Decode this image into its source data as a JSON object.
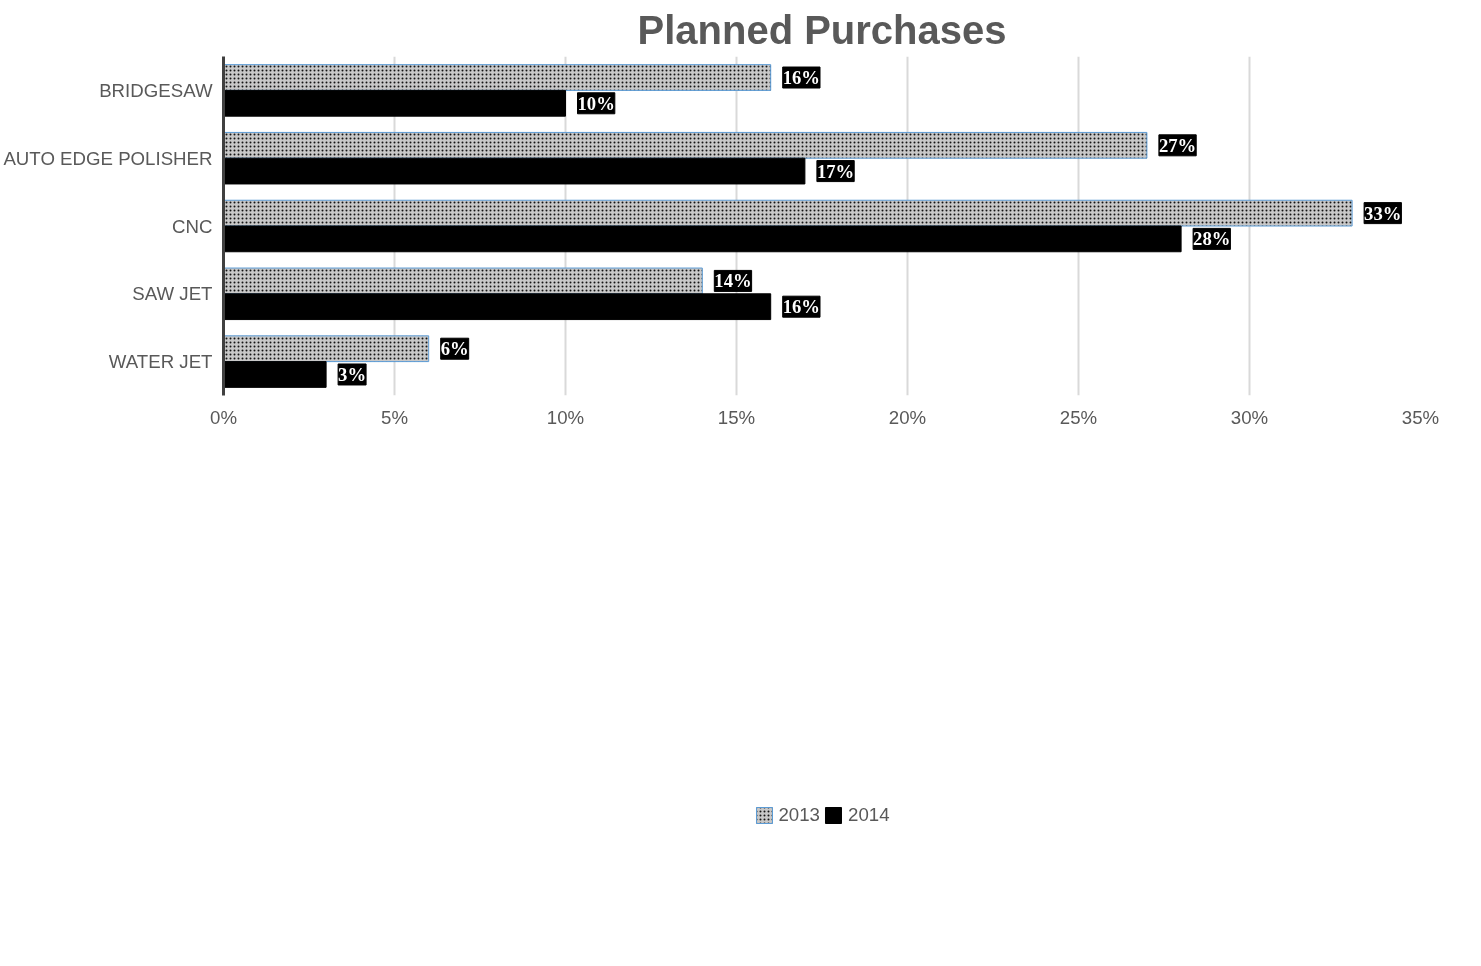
{
  "chart_data": {
    "type": "bar",
    "orientation": "horizontal",
    "title": "Planned Purchases",
    "categories": [
      "BRIDGESAW",
      "AUTO EDGE POLISHER",
      "CNC",
      "SAW JET",
      "WATER JET"
    ],
    "series": [
      {
        "name": "2013",
        "color": "#c8c8c8",
        "values": [
          16,
          27,
          33,
          14,
          6
        ],
        "value_labels": [
          "16%",
          "27%",
          "33%",
          "14%",
          "6%"
        ]
      },
      {
        "name": "2014",
        "color": "#000000",
        "values": [
          10,
          17,
          28,
          16,
          3
        ],
        "value_labels": [
          "10%",
          "17%",
          "28%",
          "16%",
          "3%"
        ]
      }
    ],
    "xlim": [
      0,
      35
    ],
    "xticks": [
      {
        "value": 0,
        "label": "0%"
      },
      {
        "value": 5,
        "label": "5%"
      },
      {
        "value": 10,
        "label": "10%"
      },
      {
        "value": 15,
        "label": "15%"
      },
      {
        "value": 20,
        "label": "20%"
      },
      {
        "value": 25,
        "label": "25%"
      },
      {
        "value": 30,
        "label": "30%"
      },
      {
        "value": 35,
        "label": "35%"
      }
    ],
    "grid": "x",
    "legend": "bottom"
  }
}
